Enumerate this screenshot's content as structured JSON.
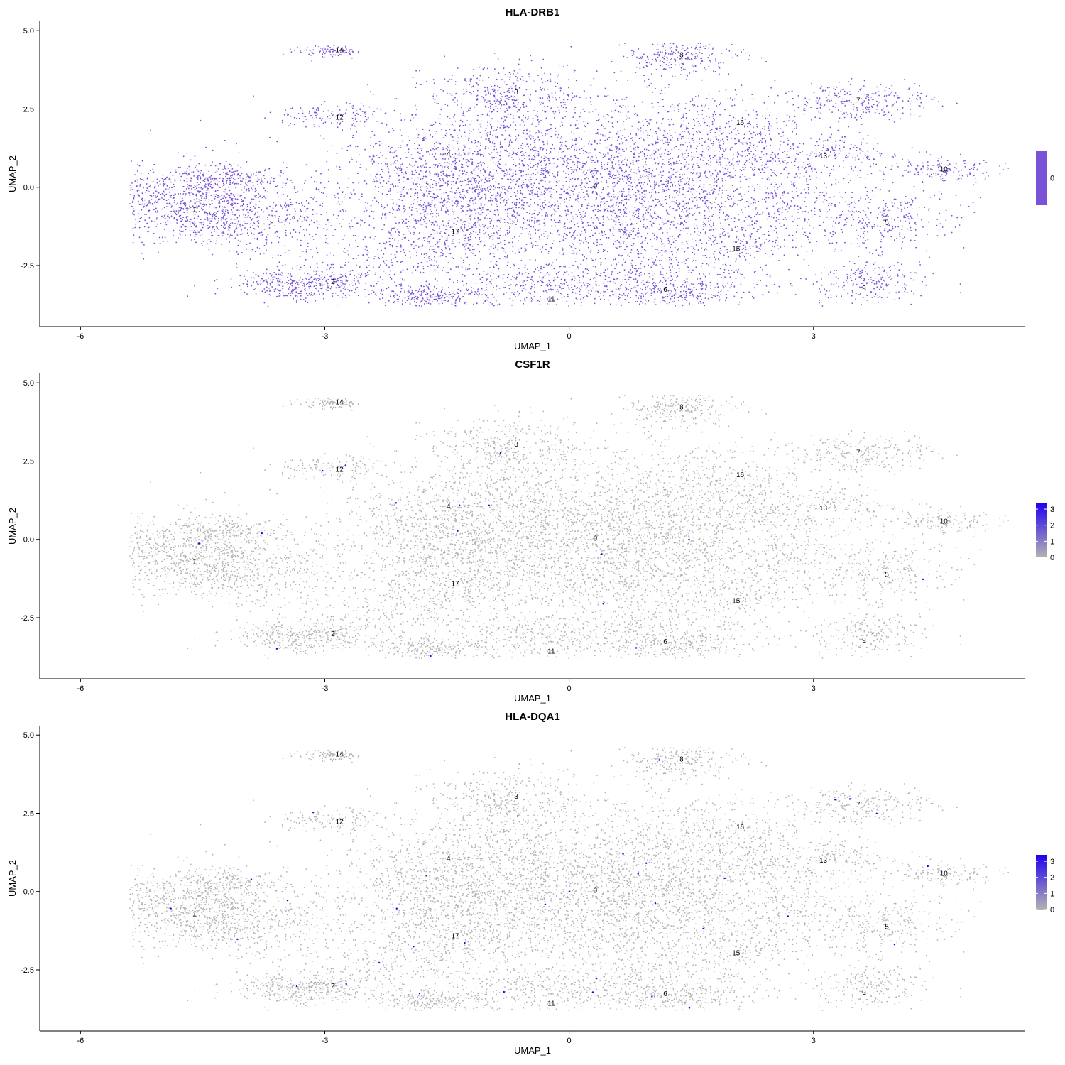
{
  "chart_data": [
    {
      "type": "scatter",
      "title": "HLA-DRB1",
      "xlabel": "UMAP_1",
      "ylabel": "UMAP_2",
      "xlim": [
        -6.5,
        5.6
      ],
      "ylim": [
        -4.45,
        5.3
      ],
      "x_ticks": [
        -6,
        -3,
        0,
        3
      ],
      "x_tick_labels": [
        "-6",
        "-3",
        "0",
        "3"
      ],
      "y_ticks": [
        5.0,
        2.5,
        0.0,
        -2.5
      ],
      "y_tick_labels": [
        "5.0",
        "2.5",
        "0.0",
        "-2.5"
      ],
      "grid": false,
      "legend_placement": "right",
      "legend_ticks": [
        0
      ],
      "legend_tick_labels": [
        "0"
      ],
      "color_low": "#7a52d6",
      "color_high": "#7a52d6",
      "highlight_fraction": 0,
      "cluster_labels": [
        {
          "label": "0",
          "x": 0.32,
          "y": 0.05
        },
        {
          "label": "1",
          "x": -4.6,
          "y": -0.7
        },
        {
          "label": "2",
          "x": -2.9,
          "y": -3.0
        },
        {
          "label": "3",
          "x": -0.65,
          "y": 3.05
        },
        {
          "label": "4",
          "x": -1.48,
          "y": 1.08
        },
        {
          "label": "5",
          "x": 3.9,
          "y": -1.1
        },
        {
          "label": "6",
          "x": 1.18,
          "y": -3.25
        },
        {
          "label": "7",
          "x": 3.55,
          "y": 2.8
        },
        {
          "label": "8",
          "x": 1.38,
          "y": 4.25
        },
        {
          "label": "9",
          "x": 3.62,
          "y": -3.2
        },
        {
          "label": "10",
          "x": 4.6,
          "y": 0.6
        },
        {
          "label": "11",
          "x": -0.22,
          "y": -3.55
        },
        {
          "label": "12",
          "x": -2.82,
          "y": 2.25
        },
        {
          "label": "13",
          "x": 3.12,
          "y": 1.02
        },
        {
          "label": "14",
          "x": -2.82,
          "y": 4.4
        },
        {
          "label": "15",
          "x": 2.05,
          "y": -1.95
        },
        {
          "label": "16",
          "x": 2.1,
          "y": 2.08
        },
        {
          "label": "17",
          "x": -1.4,
          "y": -1.4
        }
      ]
    },
    {
      "type": "scatter",
      "title": "CSF1R",
      "xlabel": "UMAP_1",
      "ylabel": "UMAP_2",
      "xlim": [
        -6.5,
        5.6
      ],
      "ylim": [
        -4.45,
        5.3
      ],
      "x_ticks": [
        -6,
        -3,
        0,
        3
      ],
      "x_tick_labels": [
        "-6",
        "-3",
        "0",
        "3"
      ],
      "y_ticks": [
        5.0,
        2.5,
        0.0,
        -2.5
      ],
      "y_tick_labels": [
        "5.0",
        "2.5",
        "0.0",
        "-2.5"
      ],
      "grid": false,
      "legend_placement": "right",
      "legend_ticks": [
        3,
        2,
        1,
        0
      ],
      "legend_tick_labels": [
        "3",
        "2",
        "1",
        "0"
      ],
      "legend_range": [
        0,
        3.4
      ],
      "color_low": "#b3b3b3",
      "color_high": "#2000f0",
      "highlight_fraction": 0.002,
      "cluster_labels": [
        {
          "label": "0",
          "x": 0.32,
          "y": 0.05
        },
        {
          "label": "1",
          "x": -4.6,
          "y": -0.7
        },
        {
          "label": "2",
          "x": -2.9,
          "y": -3.0
        },
        {
          "label": "3",
          "x": -0.65,
          "y": 3.05
        },
        {
          "label": "4",
          "x": -1.48,
          "y": 1.08
        },
        {
          "label": "5",
          "x": 3.9,
          "y": -1.1
        },
        {
          "label": "6",
          "x": 1.18,
          "y": -3.25
        },
        {
          "label": "7",
          "x": 3.55,
          "y": 2.8
        },
        {
          "label": "8",
          "x": 1.38,
          "y": 4.25
        },
        {
          "label": "9",
          "x": 3.62,
          "y": -3.2
        },
        {
          "label": "10",
          "x": 4.6,
          "y": 0.6
        },
        {
          "label": "11",
          "x": -0.22,
          "y": -3.55
        },
        {
          "label": "12",
          "x": -2.82,
          "y": 2.25
        },
        {
          "label": "13",
          "x": 3.12,
          "y": 1.02
        },
        {
          "label": "14",
          "x": -2.82,
          "y": 4.4
        },
        {
          "label": "15",
          "x": 2.05,
          "y": -1.95
        },
        {
          "label": "16",
          "x": 2.1,
          "y": 2.08
        },
        {
          "label": "17",
          "x": -1.4,
          "y": -1.4
        }
      ]
    },
    {
      "type": "scatter",
      "title": "HLA-DQA1",
      "xlabel": "UMAP_1",
      "ylabel": "UMAP_2",
      "xlim": [
        -6.5,
        5.6
      ],
      "ylim": [
        -4.45,
        5.3
      ],
      "x_ticks": [
        -6,
        -3,
        0,
        3
      ],
      "x_tick_labels": [
        "-6",
        "-3",
        "0",
        "3"
      ],
      "y_ticks": [
        5.0,
        2.5,
        0.0,
        -2.5
      ],
      "y_tick_labels": [
        "5.0",
        "2.5",
        "0.0",
        "-2.5"
      ],
      "grid": false,
      "legend_placement": "right",
      "legend_ticks": [
        3,
        2,
        1,
        0
      ],
      "legend_tick_labels": [
        "3",
        "2",
        "1",
        "0"
      ],
      "legend_range": [
        0,
        3.4
      ],
      "color_low": "#b3b3b3",
      "color_high": "#2000f0",
      "highlight_fraction": 0.004,
      "cluster_labels": [
        {
          "label": "0",
          "x": 0.32,
          "y": 0.05
        },
        {
          "label": "1",
          "x": -4.6,
          "y": -0.7
        },
        {
          "label": "2",
          "x": -2.9,
          "y": -3.0
        },
        {
          "label": "3",
          "x": -0.65,
          "y": 3.05
        },
        {
          "label": "4",
          "x": -1.48,
          "y": 1.08
        },
        {
          "label": "5",
          "x": 3.9,
          "y": -1.1
        },
        {
          "label": "6",
          "x": 1.18,
          "y": -3.25
        },
        {
          "label": "7",
          "x": 3.55,
          "y": 2.8
        },
        {
          "label": "8",
          "x": 1.38,
          "y": 4.25
        },
        {
          "label": "9",
          "x": 3.62,
          "y": -3.2
        },
        {
          "label": "10",
          "x": 4.6,
          "y": 0.6
        },
        {
          "label": "11",
          "x": -0.22,
          "y": -3.55
        },
        {
          "label": "12",
          "x": -2.82,
          "y": 2.25
        },
        {
          "label": "13",
          "x": 3.12,
          "y": 1.02
        },
        {
          "label": "14",
          "x": -2.82,
          "y": 4.4
        },
        {
          "label": "15",
          "x": 2.05,
          "y": -1.95
        },
        {
          "label": "16",
          "x": 2.1,
          "y": 2.08
        },
        {
          "label": "17",
          "x": -1.4,
          "y": -1.4
        }
      ]
    }
  ]
}
